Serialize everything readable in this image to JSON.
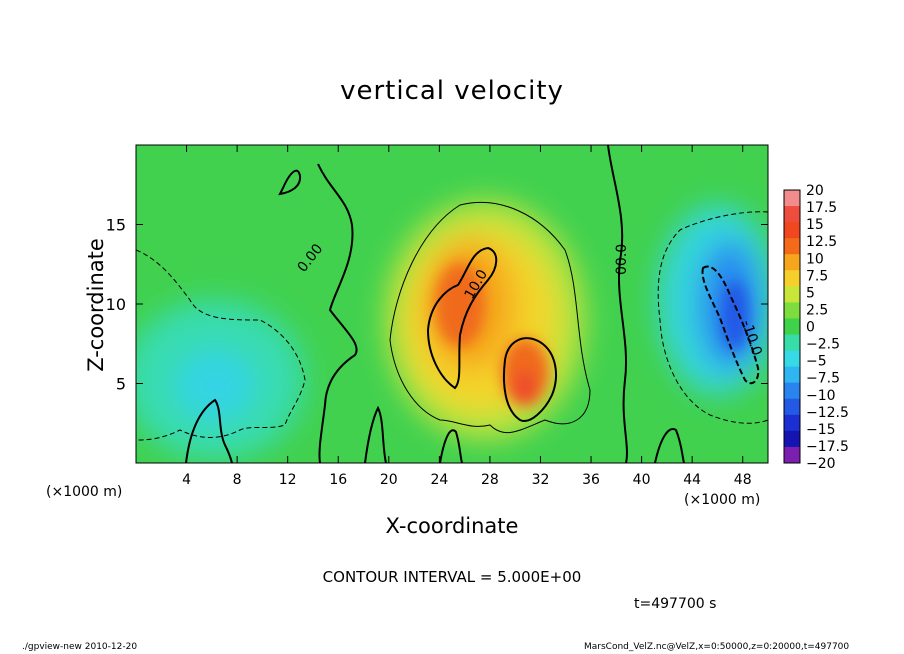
{
  "chart_data": {
    "type": "heatmap",
    "title": "vertical velocity",
    "xlabel": "X-coordinate",
    "ylabel": "Z-coordinate",
    "x_unit": "(×1000 m)",
    "y_unit": "(×1000 m)",
    "xlim": [
      0,
      50
    ],
    "ylim": [
      0,
      20
    ],
    "x_ticks": [
      "4",
      "8",
      "12",
      "16",
      "20",
      "24",
      "28",
      "32",
      "36",
      "40",
      "44",
      "48"
    ],
    "y_ticks": [
      "5",
      "10",
      "15"
    ],
    "colorbar": {
      "labels": [
        "20",
        "17.5",
        "15",
        "12.5",
        "10",
        "7.5",
        "5",
        "2.5",
        "0",
        "−2.5",
        "−5",
        "−7.5",
        "−10",
        "−12.5",
        "−15",
        "−17.5",
        "−20"
      ],
      "colors": [
        "#f28c8c",
        "#ee4d3d",
        "#f0471f",
        "#f36a1a",
        "#f6a61d",
        "#f6d02a",
        "#c8e63a",
        "#7fdc3e",
        "#3fd24b",
        "#38dca8",
        "#36d9e5",
        "#2fb5ef",
        "#2a84ef",
        "#2459e6",
        "#1c2fd2",
        "#1414b0",
        "#7b1fb0"
      ]
    },
    "contour_labels": [
      "0.00",
      "10.0",
      "00.0",
      "-10.0"
    ],
    "contour_interval": "CONTOUR INTERVAL = 5.000E+00",
    "time_label": "t=497700 s",
    "features": [
      {
        "name": "updraft-upper",
        "x": 26.5,
        "z": 10.0,
        "value": 14
      },
      {
        "name": "updraft-lower",
        "x": 31.0,
        "z": 5.5,
        "value": 16
      },
      {
        "name": "downdraft",
        "x": 47.0,
        "z": 9.0,
        "value": -11
      },
      {
        "name": "weak-downdraft-left",
        "x": 8.0,
        "z": 5.0,
        "value": -6
      }
    ]
  },
  "footer": {
    "left": "./gpview-new  2010-12-20",
    "right": "MarsCond_VelZ.nc@VelZ,x=0:50000,z=0:20000,t=497700"
  }
}
